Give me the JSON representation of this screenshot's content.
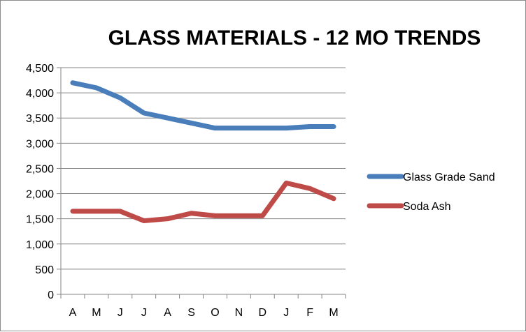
{
  "chart_data": {
    "type": "line",
    "title": "GLASS MATERIALS - 12 MO TRENDS",
    "xlabel": "",
    "ylabel": "",
    "categories": [
      "A",
      "M",
      "J",
      "J",
      "A",
      "S",
      "O",
      "N",
      "D",
      "J",
      "F",
      "M"
    ],
    "ylim": [
      0,
      4500
    ],
    "yticks": [
      0,
      500,
      1000,
      1500,
      2000,
      2500,
      3000,
      3500,
      4000,
      4500
    ],
    "ytick_labels": [
      "0",
      "500",
      "1,000",
      "1,500",
      "2,000",
      "2,500",
      "3,000",
      "3,500",
      "4,000",
      "4,500"
    ],
    "grid": true,
    "legend_position": "right",
    "series": [
      {
        "name": "Glass Grade Sand",
        "color": "#4a7ebb",
        "values": [
          4200,
          4100,
          3900,
          3600,
          3500,
          3400,
          3300,
          3300,
          3300,
          3300,
          3330,
          3330
        ]
      },
      {
        "name": "Soda Ash",
        "color": "#be4b48",
        "values": [
          1650,
          1650,
          1650,
          1460,
          1500,
          1610,
          1560,
          1560,
          1560,
          2210,
          2100,
          1900
        ]
      }
    ]
  }
}
